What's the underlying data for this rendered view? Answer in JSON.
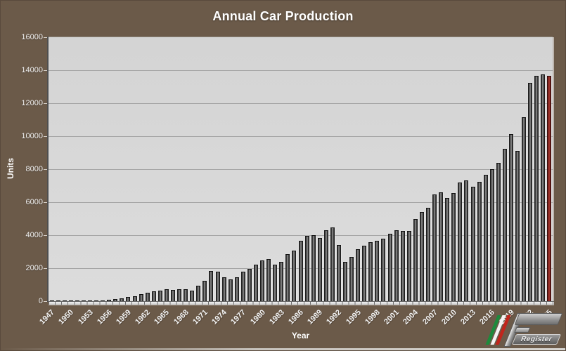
{
  "title": "Annual Car Production",
  "y_axis_title": "Units",
  "x_axis_title": "Year",
  "logo": {
    "register_text": "Register"
  },
  "colors": {
    "background": "#6b5a49",
    "plot_background": "#d8d8d8",
    "gridline": "#a5a5a5",
    "bar": "#3a3a3a",
    "bar_highlight_center": "#a8a8a8",
    "last_bar": "#8a241e",
    "text": "#ffffff",
    "logo_green": "#1d8a3c",
    "logo_white": "#f4f4f4",
    "logo_red": "#c1251c"
  },
  "chart_data": {
    "type": "bar",
    "title": "Annual Car Production",
    "xlabel": "Year",
    "ylabel": "Units",
    "ylim": [
      0,
      16000
    ],
    "ytick_step": 2000,
    "x_label_every": 3,
    "grid": true,
    "legend": "none",
    "last_bar_highlighted_red": true,
    "years": [
      1947,
      1948,
      1949,
      1950,
      1951,
      1952,
      1953,
      1954,
      1955,
      1956,
      1957,
      1958,
      1959,
      1960,
      1961,
      1962,
      1963,
      1964,
      1965,
      1966,
      1967,
      1968,
      1969,
      1970,
      1971,
      1972,
      1973,
      1974,
      1975,
      1976,
      1977,
      1978,
      1979,
      1980,
      1981,
      1982,
      1983,
      1984,
      1985,
      1986,
      1987,
      1988,
      1989,
      1990,
      1991,
      1992,
      1993,
      1994,
      1995,
      1996,
      1997,
      1998,
      1999,
      2000,
      2001,
      2002,
      2003,
      2004,
      2005,
      2006,
      2007,
      2008,
      2009,
      2010,
      2011,
      2012,
      2013,
      2014,
      2015,
      2016,
      2017,
      2018,
      2019,
      2020,
      2021,
      2022,
      2023,
      2024,
      2025
    ],
    "values": [
      3,
      5,
      21,
      26,
      33,
      44,
      58,
      58,
      61,
      81,
      113,
      183,
      248,
      306,
      441,
      493,
      598,
      654,
      740,
      665,
      706,
      729,
      619,
      928,
      1246,
      1844,
      1772,
      1436,
      1337,
      1426,
      1798,
      1939,
      2221,
      2470,
      2565,
      2209,
      2366,
      2856,
      3051,
      3663,
      3942,
      4001,
      3821,
      4293,
      4487,
      3384,
      2366,
      2671,
      3144,
      3350,
      3581,
      3652,
      3775,
      4070,
      4289,
      4236,
      4238,
      4975,
      5409,
      5671,
      6465,
      6587,
      6250,
      6573,
      7195,
      7318,
      6922,
      7255,
      7664,
      8014,
      8398,
      9251,
      10131,
      9119,
      11155,
      13221,
      13663,
      13752,
      13650
    ]
  }
}
